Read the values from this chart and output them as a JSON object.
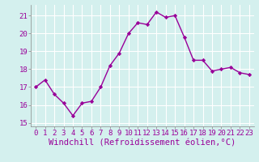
{
  "x": [
    0,
    1,
    2,
    3,
    4,
    5,
    6,
    7,
    8,
    9,
    10,
    11,
    12,
    13,
    14,
    15,
    16,
    17,
    18,
    19,
    20,
    21,
    22,
    23
  ],
  "y": [
    17.0,
    17.4,
    16.6,
    16.1,
    15.4,
    16.1,
    16.2,
    17.0,
    18.2,
    18.9,
    20.0,
    20.6,
    20.5,
    21.2,
    20.9,
    21.0,
    19.8,
    18.5,
    18.5,
    17.9,
    18.0,
    18.1,
    17.8,
    17.7
  ],
  "line_color": "#990099",
  "marker": "D",
  "markersize": 2.2,
  "linewidth": 1.0,
  "ylim": [
    14.8,
    21.6
  ],
  "yticks": [
    15,
    16,
    17,
    18,
    19,
    20,
    21
  ],
  "xlim": [
    -0.5,
    23.5
  ],
  "xticks": [
    0,
    1,
    2,
    3,
    4,
    5,
    6,
    7,
    8,
    9,
    10,
    11,
    12,
    13,
    14,
    15,
    16,
    17,
    18,
    19,
    20,
    21,
    22,
    23
  ],
  "xlabel": "Windchill (Refroidissement éolien,°C)",
  "bg_color": "#d4f0ee",
  "grid_color": "#ffffff",
  "tick_label_fontsize": 6.5,
  "xlabel_fontsize": 7.5
}
